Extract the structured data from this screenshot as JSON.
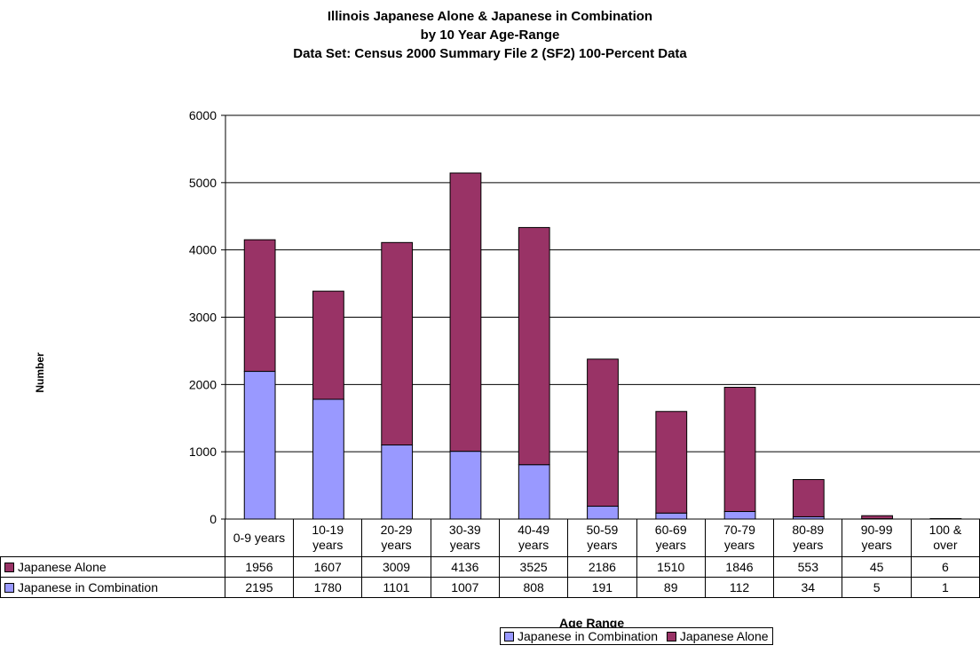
{
  "chart_data": {
    "type": "bar",
    "stacked": true,
    "title_lines": [
      "Illinois Japanese Alone & Japanese in Combination",
      "by 10 Year Age-Range",
      "Data Set: Census 2000 Summary File 2 (SF2) 100-Percent Data"
    ],
    "xlabel": "Age Range",
    "ylabel": "Number",
    "ylim": [
      0,
      6000
    ],
    "yticks": [
      "0",
      "1000",
      "2000",
      "3000",
      "4000",
      "5000",
      "6000"
    ],
    "grid": true,
    "categories": [
      [
        "0-9 years"
      ],
      [
        "10-19",
        "years"
      ],
      [
        "20-29",
        "years"
      ],
      [
        "30-39",
        "years"
      ],
      [
        "40-49",
        "years"
      ],
      [
        "50-59",
        "years"
      ],
      [
        "60-69",
        "years"
      ],
      [
        "70-79",
        "years"
      ],
      [
        "80-89",
        "years"
      ],
      [
        "90-99",
        "years"
      ],
      [
        "100 &",
        "over"
      ]
    ],
    "series": [
      {
        "name": "Japanese Alone",
        "color": "#993366",
        "values": [
          1956,
          1607,
          3009,
          4136,
          3525,
          2186,
          1510,
          1846,
          553,
          45,
          6
        ]
      },
      {
        "name": "Japanese in Combination",
        "color": "#9999ff",
        "values": [
          2195,
          1780,
          1101,
          1007,
          808,
          191,
          89,
          112,
          34,
          5,
          1
        ]
      }
    ],
    "stack_order": [
      "Japanese in Combination",
      "Japanese Alone"
    ],
    "legend_position": "bottom",
    "legend_order": [
      "Japanese in Combination",
      "Japanese Alone"
    ]
  }
}
